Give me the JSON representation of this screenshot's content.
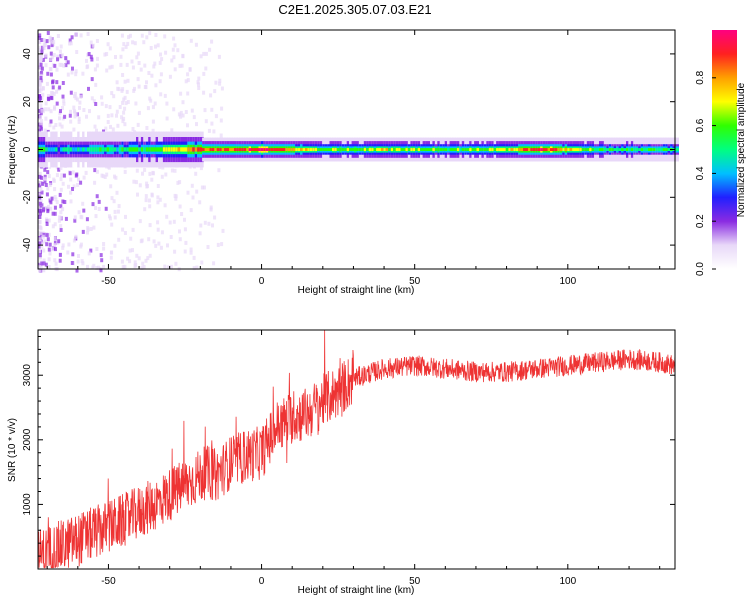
{
  "figure_title": "C2E1.2025.305.07.03.E21",
  "chart_data": [
    {
      "type": "heatmap",
      "title": "C2E1.2025.305.07.03.E21",
      "xlabel": "Height of straight line (km)",
      "ylabel": "Frequency (Hz)",
      "xlim": [
        -73,
        135
      ],
      "ylim": [
        -50,
        50
      ],
      "xticks": [
        -50,
        0,
        50,
        100
      ],
      "yticks": [
        -40,
        -20,
        0,
        20,
        40
      ],
      "colorbar": {
        "label": "Normalized spectral amplitude",
        "range": [
          0,
          1
        ],
        "ticks": [
          "0.0",
          "0.2",
          "0.4",
          "0.6",
          "0.8"
        ],
        "colors": [
          "#ffffff",
          "#e8d8f8",
          "#8a2be2",
          "#2020ff",
          "#00c0ff",
          "#00ff80",
          "#30ff00",
          "#ffff00",
          "#ffa000",
          "#ff2020",
          "#ff0080"
        ]
      },
      "ridge": [
        {
          "x": -70,
          "amp": 0.4
        },
        {
          "x": -60,
          "amp": 0.45
        },
        {
          "x": -50,
          "amp": 0.5
        },
        {
          "x": -40,
          "amp": 0.55
        },
        {
          "x": -30,
          "amp": 0.65
        },
        {
          "x": -20,
          "amp": 0.85
        },
        {
          "x": -10,
          "amp": 0.85
        },
        {
          "x": 0,
          "amp": 0.95
        },
        {
          "x": 7,
          "amp": 0.85
        },
        {
          "x": 20,
          "amp": 0.6
        },
        {
          "x": 40,
          "amp": 0.7
        },
        {
          "x": 60,
          "amp": 0.6
        },
        {
          "x": 80,
          "amp": 0.65
        },
        {
          "x": 90,
          "amp": 0.95
        },
        {
          "x": 110,
          "amp": 0.55
        },
        {
          "x": 135,
          "amp": 0.55
        }
      ]
    },
    {
      "type": "line",
      "xlabel": "Height of straight line (km)",
      "ylabel": "SNR (10 * v/v)",
      "xlim": [
        -73,
        135
      ],
      "ylim": [
        0,
        3700
      ],
      "xticks": [
        -50,
        0,
        50,
        100
      ],
      "yticks": [
        1000,
        2000,
        3000
      ],
      "color": "#ee3333",
      "x": [
        -73,
        -65,
        -55,
        -45,
        -35,
        -25,
        -18,
        -15,
        -10,
        -5,
        0,
        5,
        10,
        15,
        20,
        25,
        30,
        40,
        50,
        60,
        70,
        80,
        90,
        100,
        110,
        120,
        130,
        135
      ],
      "y": [
        200,
        350,
        550,
        750,
        1000,
        1300,
        1500,
        1450,
        1650,
        1750,
        1800,
        2200,
        2350,
        2400,
        2600,
        2750,
        2950,
        3100,
        3150,
        3100,
        3050,
        3050,
        3100,
        3150,
        3200,
        3250,
        3200,
        3150
      ]
    }
  ]
}
